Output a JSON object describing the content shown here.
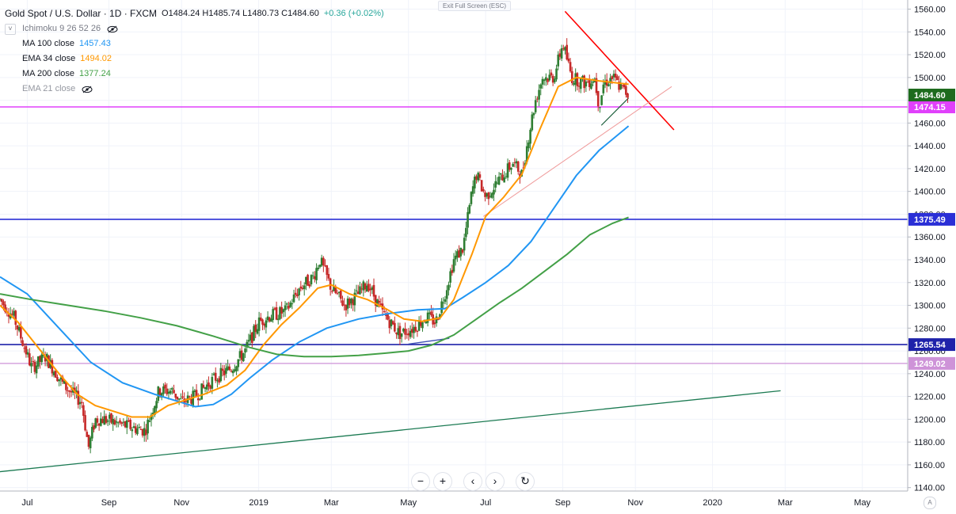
{
  "header": {
    "symbol": "Gold Spot / U.S. Dollar · 1D · FXCM",
    "ohlc": "O1484.24  H1485.74  L1480.73  C1484.60",
    "change": "+0.36 (+0.02%)",
    "exit_fullscreen": "Exit Full Screen (ESC)"
  },
  "indicators": [
    {
      "label": "Ichimoku  9 26 52 26",
      "value": "",
      "color": "#787b86",
      "hidden": true
    },
    {
      "label": "MA  100 close",
      "value": "1457.43",
      "color": "#2196f3",
      "hidden": false
    },
    {
      "label": "EMA 34 close",
      "value": "1494.02",
      "color": "#ff9800",
      "hidden": false
    },
    {
      "label": "MA  200 close",
      "value": "1377.24",
      "color": "#43a047",
      "hidden": false
    },
    {
      "label": "EMA 21 close",
      "value": "",
      "color": "#9598a1",
      "hidden": true
    }
  ],
  "nav": {
    "zoom_out": "−",
    "zoom_in": "+",
    "left": "‹",
    "right": "›",
    "reset": "↻",
    "auto": "A"
  },
  "chart_data": {
    "type": "candlestick",
    "y_ticks": [
      1140,
      1160,
      1180,
      1200,
      1220,
      1240,
      1260,
      1280,
      1300,
      1320,
      1340,
      1360,
      1380,
      1400,
      1420,
      1440,
      1460,
      1480,
      1500,
      1520,
      1540,
      1560
    ],
    "x_ticks": [
      {
        "label": "Jul",
        "x": 2018.49
      },
      {
        "label": "Sep",
        "x": 2018.67
      },
      {
        "label": "Nov",
        "x": 2018.83
      },
      {
        "label": "2019",
        "x": 2019.0
      },
      {
        "label": "Mar",
        "x": 2019.16
      },
      {
        "label": "May",
        "x": 2019.33
      },
      {
        "label": "Jul",
        "x": 2019.5
      },
      {
        "label": "Sep",
        "x": 2019.67
      },
      {
        "label": "Nov",
        "x": 2019.83
      },
      {
        "label": "2020",
        "x": 2020.0
      },
      {
        "label": "Mar",
        "x": 2020.16
      },
      {
        "label": "May",
        "x": 2020.33
      }
    ],
    "xlim": [
      2018.43,
      2020.43
    ],
    "ylim": [
      1137,
      1568
    ],
    "price_anchors": [
      [
        2018.43,
        1305
      ],
      [
        2018.46,
        1290
      ],
      [
        2018.5,
        1245
      ],
      [
        2018.53,
        1255
      ],
      [
        2018.57,
        1230
      ],
      [
        2018.61,
        1215
      ],
      [
        2018.625,
        1175
      ],
      [
        2018.64,
        1200
      ],
      [
        2018.66,
        1200
      ],
      [
        2018.7,
        1195
      ],
      [
        2018.75,
        1190
      ],
      [
        2018.78,
        1225
      ],
      [
        2018.81,
        1225
      ],
      [
        2018.83,
        1215
      ],
      [
        2018.86,
        1220
      ],
      [
        2018.9,
        1235
      ],
      [
        2018.94,
        1245
      ],
      [
        2018.97,
        1260
      ],
      [
        2019.0,
        1285
      ],
      [
        2019.02,
        1290
      ],
      [
        2019.06,
        1295
      ],
      [
        2019.09,
        1315
      ],
      [
        2019.12,
        1325
      ],
      [
        2019.135,
        1340
      ],
      [
        2019.16,
        1315
      ],
      [
        2019.19,
        1300
      ],
      [
        2019.22,
        1310
      ],
      [
        2019.24,
        1320
      ],
      [
        2019.27,
        1295
      ],
      [
        2019.31,
        1275
      ],
      [
        2019.34,
        1280
      ],
      [
        2019.37,
        1290
      ],
      [
        2019.39,
        1285
      ],
      [
        2019.41,
        1310
      ],
      [
        2019.43,
        1340
      ],
      [
        2019.45,
        1350
      ],
      [
        2019.47,
        1400
      ],
      [
        2019.48,
        1415
      ],
      [
        2019.5,
        1395
      ],
      [
        2019.53,
        1410
      ],
      [
        2019.56,
        1425
      ],
      [
        2019.58,
        1415
      ],
      [
        2019.6,
        1460
      ],
      [
        2019.61,
        1480
      ],
      [
        2019.625,
        1500
      ],
      [
        2019.65,
        1500
      ],
      [
        2019.67,
        1530
      ],
      [
        2019.69,
        1500
      ],
      [
        2019.72,
        1495
      ],
      [
        2019.74,
        1500
      ],
      [
        2019.75,
        1475
      ],
      [
        2019.76,
        1495
      ],
      [
        2019.78,
        1500
      ],
      [
        2019.8,
        1490
      ],
      [
        2019.815,
        1484.6
      ]
    ],
    "series": [
      {
        "name": "MA 100 close",
        "color": "#2196f3",
        "points": [
          [
            2018.43,
            1325
          ],
          [
            2018.49,
            1310
          ],
          [
            2018.56,
            1280
          ],
          [
            2018.63,
            1250
          ],
          [
            2018.7,
            1232
          ],
          [
            2018.77,
            1222
          ],
          [
            2018.82,
            1216
          ],
          [
            2018.86,
            1211
          ],
          [
            2018.9,
            1213
          ],
          [
            2018.94,
            1222
          ],
          [
            2018.98,
            1236
          ],
          [
            2019.03,
            1252
          ],
          [
            2019.09,
            1268
          ],
          [
            2019.15,
            1280
          ],
          [
            2019.22,
            1288
          ],
          [
            2019.29,
            1293
          ],
          [
            2019.35,
            1296
          ],
          [
            2019.41,
            1297
          ],
          [
            2019.45,
            1307
          ],
          [
            2019.5,
            1320
          ],
          [
            2019.55,
            1335
          ],
          [
            2019.6,
            1356
          ],
          [
            2019.65,
            1385
          ],
          [
            2019.7,
            1414
          ],
          [
            2019.75,
            1436
          ],
          [
            2019.815,
            1457.43
          ]
        ]
      },
      {
        "name": "EMA 34 close",
        "color": "#ff9800",
        "points": [
          [
            2018.43,
            1300
          ],
          [
            2018.47,
            1285
          ],
          [
            2018.52,
            1260
          ],
          [
            2018.56,
            1240
          ],
          [
            2018.6,
            1222
          ],
          [
            2018.64,
            1212
          ],
          [
            2018.68,
            1207
          ],
          [
            2018.72,
            1202
          ],
          [
            2018.76,
            1202
          ],
          [
            2018.8,
            1212
          ],
          [
            2018.84,
            1217
          ],
          [
            2018.88,
            1222
          ],
          [
            2018.93,
            1230
          ],
          [
            2018.97,
            1243
          ],
          [
            2019.01,
            1265
          ],
          [
            2019.05,
            1283
          ],
          [
            2019.09,
            1298
          ],
          [
            2019.13,
            1315
          ],
          [
            2019.16,
            1318
          ],
          [
            2019.2,
            1310
          ],
          [
            2019.24,
            1305
          ],
          [
            2019.28,
            1297
          ],
          [
            2019.32,
            1288
          ],
          [
            2019.36,
            1286
          ],
          [
            2019.4,
            1289
          ],
          [
            2019.43,
            1305
          ],
          [
            2019.47,
            1345
          ],
          [
            2019.5,
            1378
          ],
          [
            2019.54,
            1395
          ],
          [
            2019.58,
            1415
          ],
          [
            2019.62,
            1455
          ],
          [
            2019.66,
            1492
          ],
          [
            2019.7,
            1500
          ],
          [
            2019.75,
            1497
          ],
          [
            2019.815,
            1494.02
          ]
        ]
      },
      {
        "name": "MA 200 close",
        "color": "#43a047",
        "points": [
          [
            2018.43,
            1310
          ],
          [
            2018.5,
            1305
          ],
          [
            2018.58,
            1300
          ],
          [
            2018.66,
            1295
          ],
          [
            2018.74,
            1289
          ],
          [
            2018.82,
            1282
          ],
          [
            2018.9,
            1273
          ],
          [
            2018.98,
            1263
          ],
          [
            2019.04,
            1257
          ],
          [
            2019.1,
            1255
          ],
          [
            2019.16,
            1255
          ],
          [
            2019.22,
            1256
          ],
          [
            2019.28,
            1258
          ],
          [
            2019.33,
            1260
          ],
          [
            2019.38,
            1265
          ],
          [
            2019.43,
            1274
          ],
          [
            2019.48,
            1288
          ],
          [
            2019.53,
            1302
          ],
          [
            2019.58,
            1315
          ],
          [
            2019.63,
            1330
          ],
          [
            2019.68,
            1345
          ],
          [
            2019.73,
            1362
          ],
          [
            2019.78,
            1372
          ],
          [
            2019.815,
            1377.24
          ]
        ]
      }
    ],
    "hlines": [
      {
        "value": 1474.15,
        "label": "1474.15",
        "color": "#e040fb",
        "width": 1.6
      },
      {
        "value": 1375.49,
        "label": "1375.49",
        "color": "#2a2fd6",
        "width": 1.6
      },
      {
        "value": 1265.54,
        "label": "1265.54",
        "color": "#1e22aa",
        "width": 1.6
      },
      {
        "value": 1249.02,
        "label": "1249.02",
        "color": "#ce93d8",
        "width": 1.2
      }
    ],
    "last_price": {
      "value": 1484.6,
      "label": "1484.60",
      "color": "#1e6b1e"
    },
    "trendlines": [
      {
        "name": "long-term-support",
        "color": "#1b7a52",
        "width": 1.3,
        "p1": [
          2018.43,
          1154
        ],
        "p2": [
          2020.15,
          1225
        ]
      },
      {
        "name": "descending-resistance",
        "color": "#ff0000",
        "width": 1.6,
        "p1": [
          2019.675,
          1558
        ],
        "p2": [
          2019.915,
          1454
        ]
      },
      {
        "name": "rising-channel-support",
        "color": "#ef9a9a",
        "width": 1,
        "p1": [
          2019.495,
          1378
        ],
        "p2": [
          2019.91,
          1492
        ]
      },
      {
        "name": "triangle-lower",
        "color": "#1b5e3b",
        "width": 1.2,
        "p1": [
          2019.755,
          1458
        ],
        "p2": [
          2019.815,
          1482
        ]
      },
      {
        "name": "may-low-support",
        "color": "#3f51b5",
        "width": 1.4,
        "p1": [
          2019.33,
          1266
        ],
        "p2": [
          2019.42,
          1271
        ]
      }
    ]
  }
}
